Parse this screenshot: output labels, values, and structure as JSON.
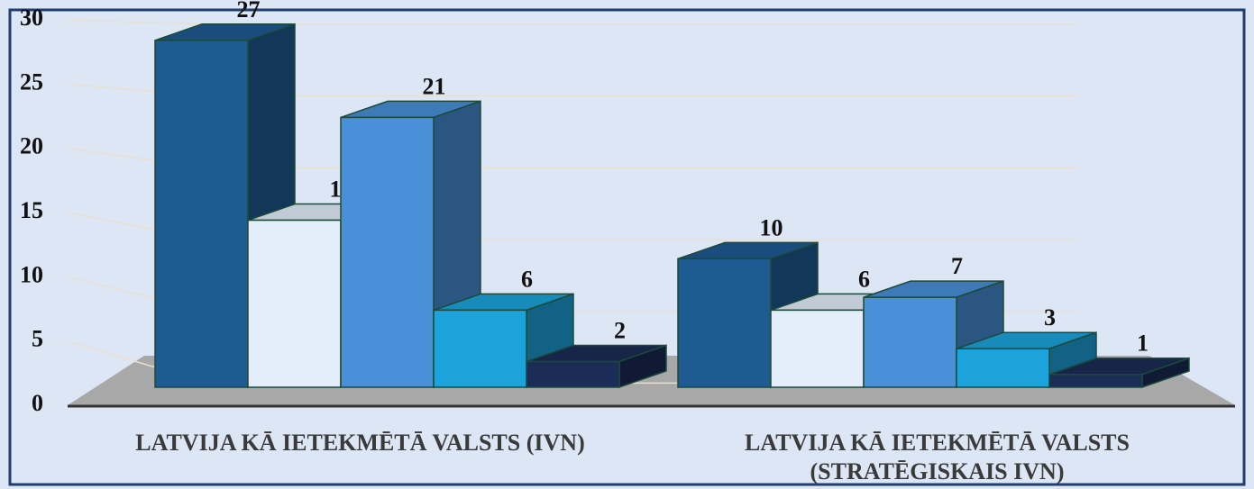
{
  "chart_data": {
    "type": "bar3d",
    "categories": [
      "LATVIJA KĀ IETEKMĒTĀ VALSTS (IVN)",
      "LATVIJA KĀ IETEKMĒTĀ VALSTS (STRATĒGISKAIS IVN)"
    ],
    "series": [
      {
        "color": "#1f5b93",
        "values": [
          27,
          10
        ]
      },
      {
        "color": "#e3eefa",
        "values": [
          13,
          6
        ]
      },
      {
        "color": "#4a90d9",
        "values": [
          21,
          7
        ]
      },
      {
        "color": "#1ca3dc",
        "values": [
          6,
          3
        ]
      },
      {
        "color": "#1b2c56",
        "values": [
          2,
          1
        ]
      }
    ],
    "ylim": [
      0,
      30
    ],
    "yticks": [
      0,
      5,
      10,
      15,
      20,
      25,
      30
    ],
    "grid": true
  }
}
